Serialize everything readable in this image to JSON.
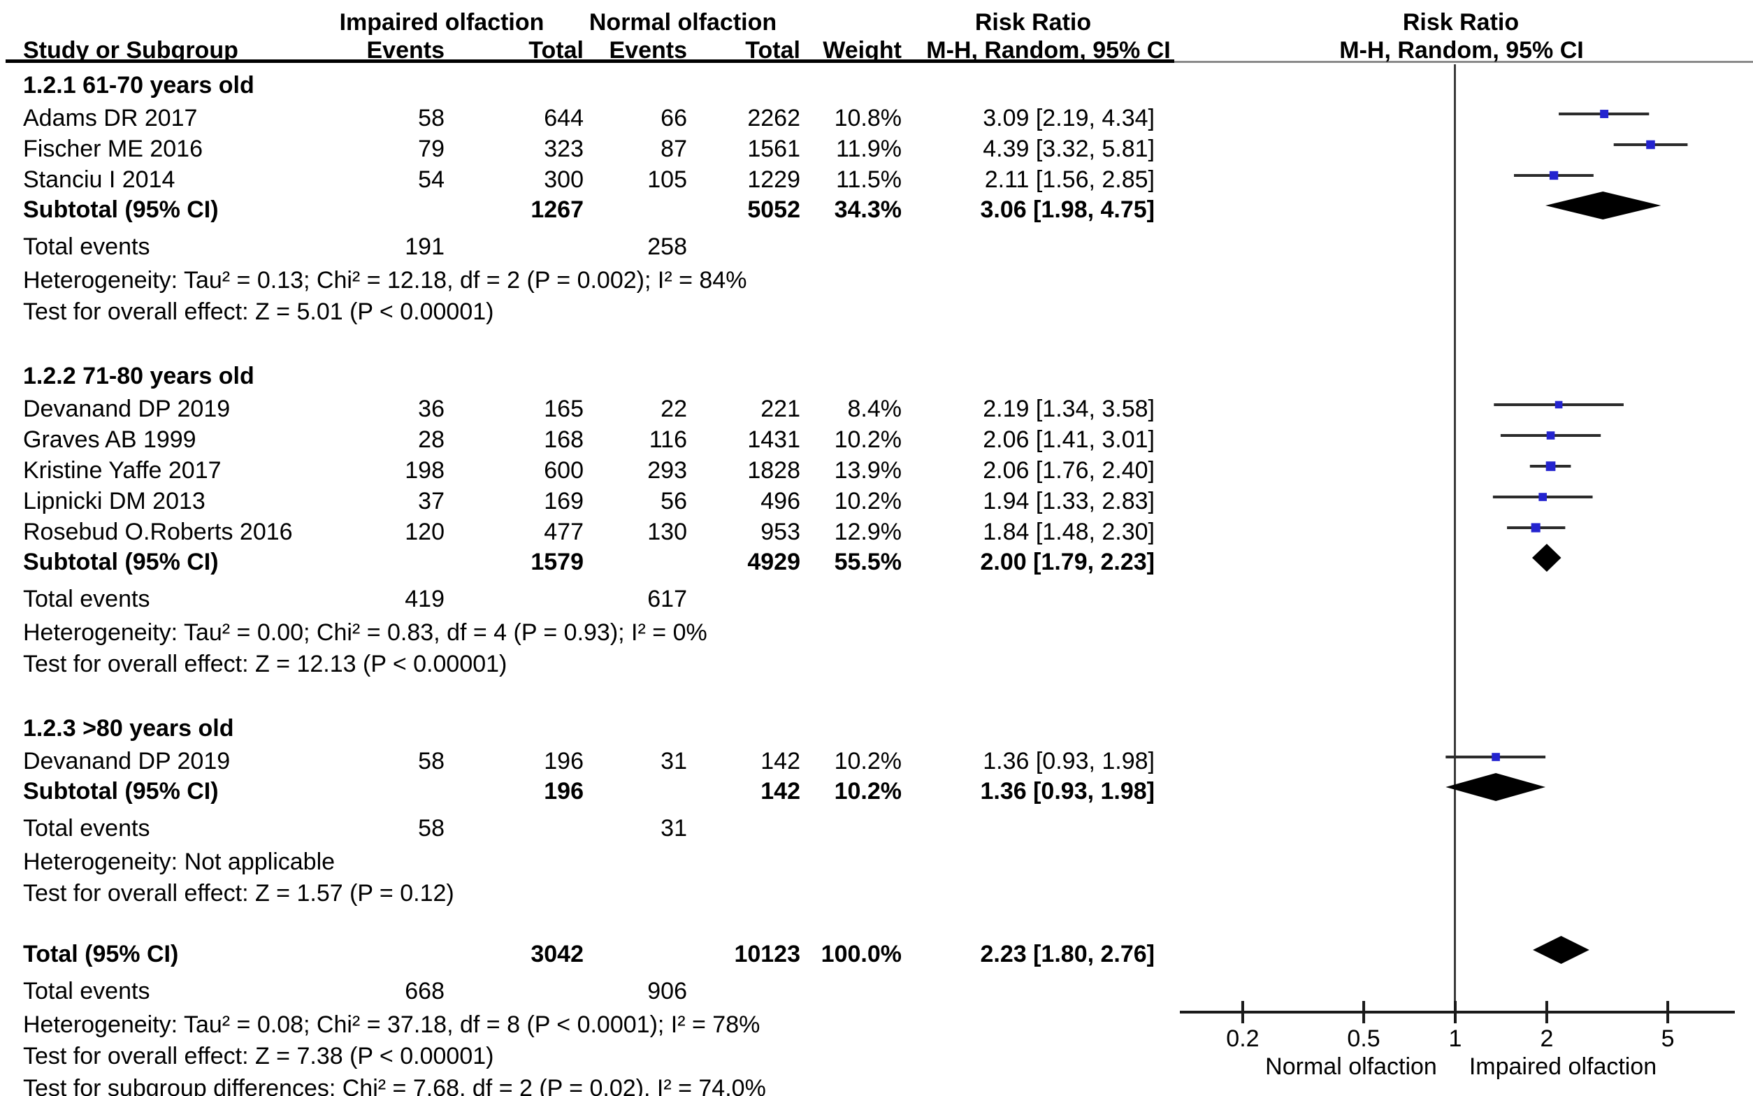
{
  "figure": {
    "headers": {
      "impaired_group": "Impaired olfaction",
      "normal_group": "Normal olfaction",
      "risk_ratio_left": "Risk Ratio",
      "risk_ratio_right": "Risk Ratio",
      "study": "Study or Subgroup",
      "events_impaired": "Events",
      "total_impaired": "Total",
      "events_normal": "Events",
      "total_normal": "Total",
      "weight": "Weight",
      "mh_left": "M-H, Random, 95% CI",
      "mh_right": "M-H, Random, 95% CI"
    },
    "colors": {
      "square": "#2424cf",
      "diamond": "#000000",
      "ci_line": "#2b2b2b",
      "axis": "#1a1a1a",
      "rule_black": "#000000",
      "rule_gray": "#8a8a8a",
      "null_line": "#3c3c3c"
    }
  },
  "chart_data": {
    "type": "forest_plot",
    "effect_measure": "Risk Ratio",
    "method": "M-H, Random, 95% CI",
    "x_axis": {
      "scale": "log",
      "ticks": [
        0.2,
        0.5,
        1,
        2,
        5
      ],
      "tick_labels": [
        "0.2",
        "0.5",
        "1",
        "2",
        "5"
      ],
      "left_label": "Normal olfaction",
      "right_label": "Impaired olfaction"
    },
    "subgroups": [
      {
        "label": "1.2.1 61-70 years old",
        "studies": [
          {
            "name": "Adams DR 2017",
            "events_impaired": "58",
            "total_impaired": "644",
            "events_normal": "66",
            "total_normal": "2262",
            "weight": "10.8%",
            "weight_pct": 10.8,
            "rr_text": "3.09 [2.19, 4.34]",
            "rr": 3.09,
            "ci_low": 2.19,
            "ci_high": 4.34
          },
          {
            "name": "Fischer ME 2016",
            "events_impaired": "79",
            "total_impaired": "323",
            "events_normal": "87",
            "total_normal": "1561",
            "weight": "11.9%",
            "weight_pct": 11.9,
            "rr_text": "4.39 [3.32, 5.81]",
            "rr": 4.39,
            "ci_low": 3.32,
            "ci_high": 5.81
          },
          {
            "name": "Stanciu I 2014",
            "events_impaired": "54",
            "total_impaired": "300",
            "events_normal": "105",
            "total_normal": "1229",
            "weight": "11.5%",
            "weight_pct": 11.5,
            "rr_text": "2.11 [1.56, 2.85]",
            "rr": 2.11,
            "ci_low": 1.56,
            "ci_high": 2.85
          }
        ],
        "subtotal": {
          "label": "Subtotal (95% CI)",
          "total_impaired": "1267",
          "total_normal": "5052",
          "weight": "34.3%",
          "rr_text": "3.06 [1.98, 4.75]",
          "rr": 3.06,
          "ci_low": 1.98,
          "ci_high": 4.75
        },
        "total_events": {
          "label": "Total events",
          "impaired": "191",
          "normal": "258"
        },
        "heterogeneity": "Heterogeneity: Tau² = 0.13; Chi² = 12.18, df = 2 (P = 0.002); I² = 84%",
        "overall_effect": "Test for overall effect: Z = 5.01 (P < 0.00001)"
      },
      {
        "label": "1.2.2 71-80 years old",
        "studies": [
          {
            "name": "Devanand DP 2019",
            "events_impaired": "36",
            "total_impaired": "165",
            "events_normal": "22",
            "total_normal": "221",
            "weight": "8.4%",
            "weight_pct": 8.4,
            "rr_text": "2.19 [1.34, 3.58]",
            "rr": 2.19,
            "ci_low": 1.34,
            "ci_high": 3.58
          },
          {
            "name": "Graves AB 1999",
            "events_impaired": "28",
            "total_impaired": "168",
            "events_normal": "116",
            "total_normal": "1431",
            "weight": "10.2%",
            "weight_pct": 10.2,
            "rr_text": "2.06 [1.41, 3.01]",
            "rr": 2.06,
            "ci_low": 1.41,
            "ci_high": 3.01
          },
          {
            "name": "Kristine Yaffe 2017",
            "events_impaired": "198",
            "total_impaired": "600",
            "events_normal": "293",
            "total_normal": "1828",
            "weight": "13.9%",
            "weight_pct": 13.9,
            "rr_text": "2.06 [1.76, 2.40]",
            "rr": 2.06,
            "ci_low": 1.76,
            "ci_high": 2.4
          },
          {
            "name": "Lipnicki DM 2013",
            "events_impaired": "37",
            "total_impaired": "169",
            "events_normal": "56",
            "total_normal": "496",
            "weight": "10.2%",
            "weight_pct": 10.2,
            "rr_text": "1.94 [1.33, 2.83]",
            "rr": 1.94,
            "ci_low": 1.33,
            "ci_high": 2.83
          },
          {
            "name": "Rosebud O.Roberts 2016",
            "events_impaired": "120",
            "total_impaired": "477",
            "events_normal": "130",
            "total_normal": "953",
            "weight": "12.9%",
            "weight_pct": 12.9,
            "rr_text": "1.84 [1.48, 2.30]",
            "rr": 1.84,
            "ci_low": 1.48,
            "ci_high": 2.3
          }
        ],
        "subtotal": {
          "label": "Subtotal (95% CI)",
          "total_impaired": "1579",
          "total_normal": "4929",
          "weight": "55.5%",
          "rr_text": "2.00 [1.79, 2.23]",
          "rr": 2.0,
          "ci_low": 1.79,
          "ci_high": 2.23
        },
        "total_events": {
          "label": "Total events",
          "impaired": "419",
          "normal": "617"
        },
        "heterogeneity": "Heterogeneity: Tau² = 0.00; Chi² = 0.83, df = 4 (P = 0.93); I² = 0%",
        "overall_effect": "Test for overall effect: Z = 12.13 (P < 0.00001)"
      },
      {
        "label": "1.2.3 >80 years old",
        "studies": [
          {
            "name": "Devanand DP 2019",
            "events_impaired": "58",
            "total_impaired": "196",
            "events_normal": "31",
            "total_normal": "142",
            "weight": "10.2%",
            "weight_pct": 10.2,
            "rr_text": "1.36 [0.93, 1.98]",
            "rr": 1.36,
            "ci_low": 0.93,
            "ci_high": 1.98
          }
        ],
        "subtotal": {
          "label": "Subtotal (95% CI)",
          "total_impaired": "196",
          "total_normal": "142",
          "weight": "10.2%",
          "rr_text": "1.36 [0.93, 1.98]",
          "rr": 1.36,
          "ci_low": 0.93,
          "ci_high": 1.98
        },
        "total_events": {
          "label": "Total events",
          "impaired": "58",
          "normal": "31"
        },
        "heterogeneity": "Heterogeneity: Not applicable",
        "overall_effect": "Test for overall effect: Z = 1.57 (P = 0.12)"
      }
    ],
    "total": {
      "label": "Total (95% CI)",
      "total_impaired": "3042",
      "total_normal": "10123",
      "weight": "100.0%",
      "rr_text": "2.23 [1.80, 2.76]",
      "rr": 2.23,
      "ci_low": 1.8,
      "ci_high": 2.76,
      "total_events": {
        "label": "Total events",
        "impaired": "668",
        "normal": "906"
      },
      "heterogeneity": "Heterogeneity: Tau² = 0.08; Chi² = 37.18, df = 8 (P < 0.0001); I² = 78%",
      "overall_effect": "Test for overall effect: Z = 7.38 (P < 0.00001)",
      "subgroup_differences": "Test for subgroup differences: Chi² = 7.68, df = 2 (P = 0.02), I² = 74.0%"
    }
  }
}
